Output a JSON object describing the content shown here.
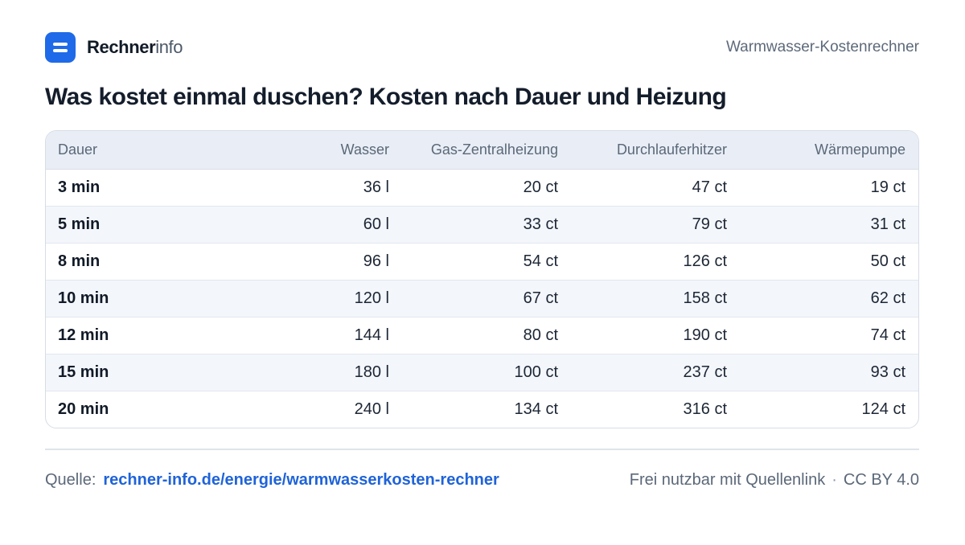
{
  "brand": {
    "name_strong": "Rechner",
    "name_light": "info",
    "logo_icon": "menu-lines-icon",
    "accent": "#1f6ae8"
  },
  "header": {
    "right_text": "Warmwasser-Kostenrechner"
  },
  "title": "Was kostet einmal duschen? Kosten nach Dauer und Heizung",
  "table": {
    "headers": [
      "Dauer",
      "Wasser",
      "Gas-Zentralheizung",
      "Durchlauferhitzer",
      "Wärmepumpe"
    ],
    "rows": [
      [
        "3 min",
        "36 l",
        "20 ct",
        "47 ct",
        "19 ct"
      ],
      [
        "5 min",
        "60 l",
        "33 ct",
        "79 ct",
        "31 ct"
      ],
      [
        "8 min",
        "96 l",
        "54 ct",
        "126 ct",
        "50 ct"
      ],
      [
        "10 min",
        "120 l",
        "67 ct",
        "158 ct",
        "62 ct"
      ],
      [
        "12 min",
        "144 l",
        "80 ct",
        "190 ct",
        "74 ct"
      ],
      [
        "15 min",
        "180 l",
        "100 ct",
        "237 ct",
        "93 ct"
      ],
      [
        "20 min",
        "240 l",
        "134 ct",
        "316 ct",
        "124 ct"
      ]
    ]
  },
  "footer": {
    "source_label": "Quelle:",
    "source_link": "rechner-info.de/energie/warmwasserkosten-rechner",
    "license_text": "Frei nutzbar mit Quellenlink",
    "separator": "·",
    "license_name": "CC BY 4.0",
    "link_color": "#1f63d8"
  }
}
